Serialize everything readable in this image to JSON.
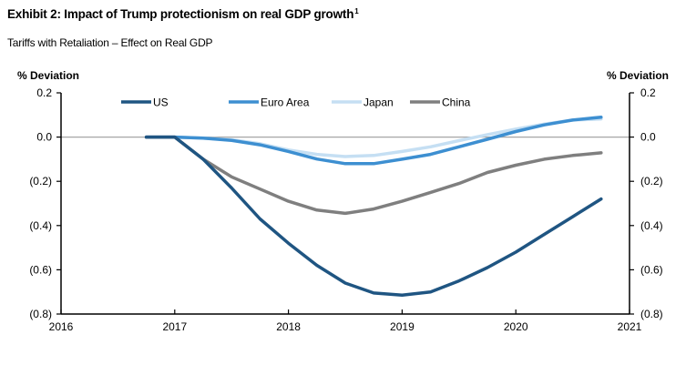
{
  "header": {
    "title": "Exhibit 2: Impact of Trump protectionism on real GDP growth",
    "footnote_marker": "1",
    "subtitle": "Tariffs with Retaliation – Effect on Real GDP"
  },
  "chart_data": {
    "type": "line",
    "title": "Exhibit 2: Impact of Trump protectionism on real GDP growth",
    "subtitle": "Tariffs with Retaliation – Effect on Real GDP",
    "xlabel": "",
    "ylabel_left": "% Deviation",
    "ylabel_right": "% Deviation",
    "xlim": [
      2016,
      2021
    ],
    "ylim": [
      -0.8,
      0.2
    ],
    "x_ticks": [
      2016,
      2017,
      2018,
      2019,
      2020,
      2021
    ],
    "x_tick_labels": [
      "2016",
      "2017",
      "2018",
      "2019",
      "2020",
      "2021"
    ],
    "y_ticks": [
      0.2,
      0.0,
      -0.2,
      -0.4,
      -0.6,
      -0.8
    ],
    "y_tick_labels": [
      "0.2",
      "0.0",
      "(0.2)",
      "(0.4)",
      "(0.6)",
      "(0.8)"
    ],
    "grid": false,
    "zero_line": true,
    "legend_position": "top",
    "x": [
      2016.75,
      2017.0,
      2017.25,
      2017.5,
      2017.75,
      2018.0,
      2018.25,
      2018.5,
      2018.75,
      2019.0,
      2019.25,
      2019.5,
      2019.75,
      2020.0,
      2020.25,
      2020.5,
      2020.75
    ],
    "series": [
      {
        "name": "US",
        "color": "#1f5582",
        "values": [
          0.0,
          0.0,
          -0.1,
          -0.23,
          -0.37,
          -0.48,
          -0.58,
          -0.66,
          -0.705,
          -0.715,
          -0.7,
          -0.65,
          -0.59,
          -0.52,
          -0.44,
          -0.36,
          -0.28
        ]
      },
      {
        "name": "Euro Area",
        "color": "#3d8fd1",
        "values": [
          0.0,
          0.0,
          -0.005,
          -0.015,
          -0.035,
          -0.065,
          -0.099,
          -0.12,
          -0.12,
          -0.1,
          -0.078,
          -0.044,
          -0.01,
          0.025,
          0.055,
          0.077,
          0.09
        ]
      },
      {
        "name": "Japan",
        "color": "#c5dff3",
        "values": [
          0.0,
          0.0,
          -0.005,
          -0.012,
          -0.03,
          -0.058,
          -0.078,
          -0.088,
          -0.083,
          -0.065,
          -0.044,
          -0.016,
          0.011,
          0.036,
          0.059,
          0.077,
          0.082
        ]
      },
      {
        "name": "China",
        "color": "#7f7f7f",
        "values": [
          0.0,
          0.0,
          -0.1,
          -0.18,
          -0.235,
          -0.29,
          -0.33,
          -0.345,
          -0.325,
          -0.29,
          -0.25,
          -0.21,
          -0.16,
          -0.127,
          -0.1,
          -0.083,
          -0.071
        ]
      }
    ]
  }
}
